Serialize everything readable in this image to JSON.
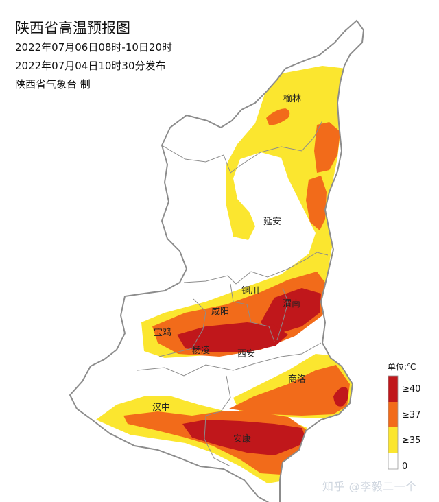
{
  "header": {
    "title": "陕西省高温预报图",
    "period": "2022年07月06日08时-10日20时",
    "issued": "2022年07月04日10时30分发布",
    "producer": "陕西省气象台 制"
  },
  "cities": {
    "yulin": "榆林",
    "yanan": "延安",
    "tongchuan": "铜川",
    "xianyang": "咸阳",
    "weinan": "渭南",
    "baoji": "宝鸡",
    "yangling": "杨凌",
    "xian": "西安",
    "shangluo": "商洛",
    "hanzhong": "汉中",
    "ankang": "安康"
  },
  "legend": {
    "title": "单位:℃",
    "items": [
      {
        "label": "≥40",
        "color": "#c0171b"
      },
      {
        "label": "≥37",
        "color": "#f26b1a"
      },
      {
        "label": "≥35",
        "color": "#fbe62f"
      },
      {
        "label": "0",
        "color": "#ffffff"
      }
    ]
  },
  "watermark": "知乎 @李毅二一个",
  "colors": {
    "zone35": "#fbe62f",
    "zone37": "#f26b1a",
    "zone40": "#c0171b",
    "border": "#8c8c8c"
  }
}
